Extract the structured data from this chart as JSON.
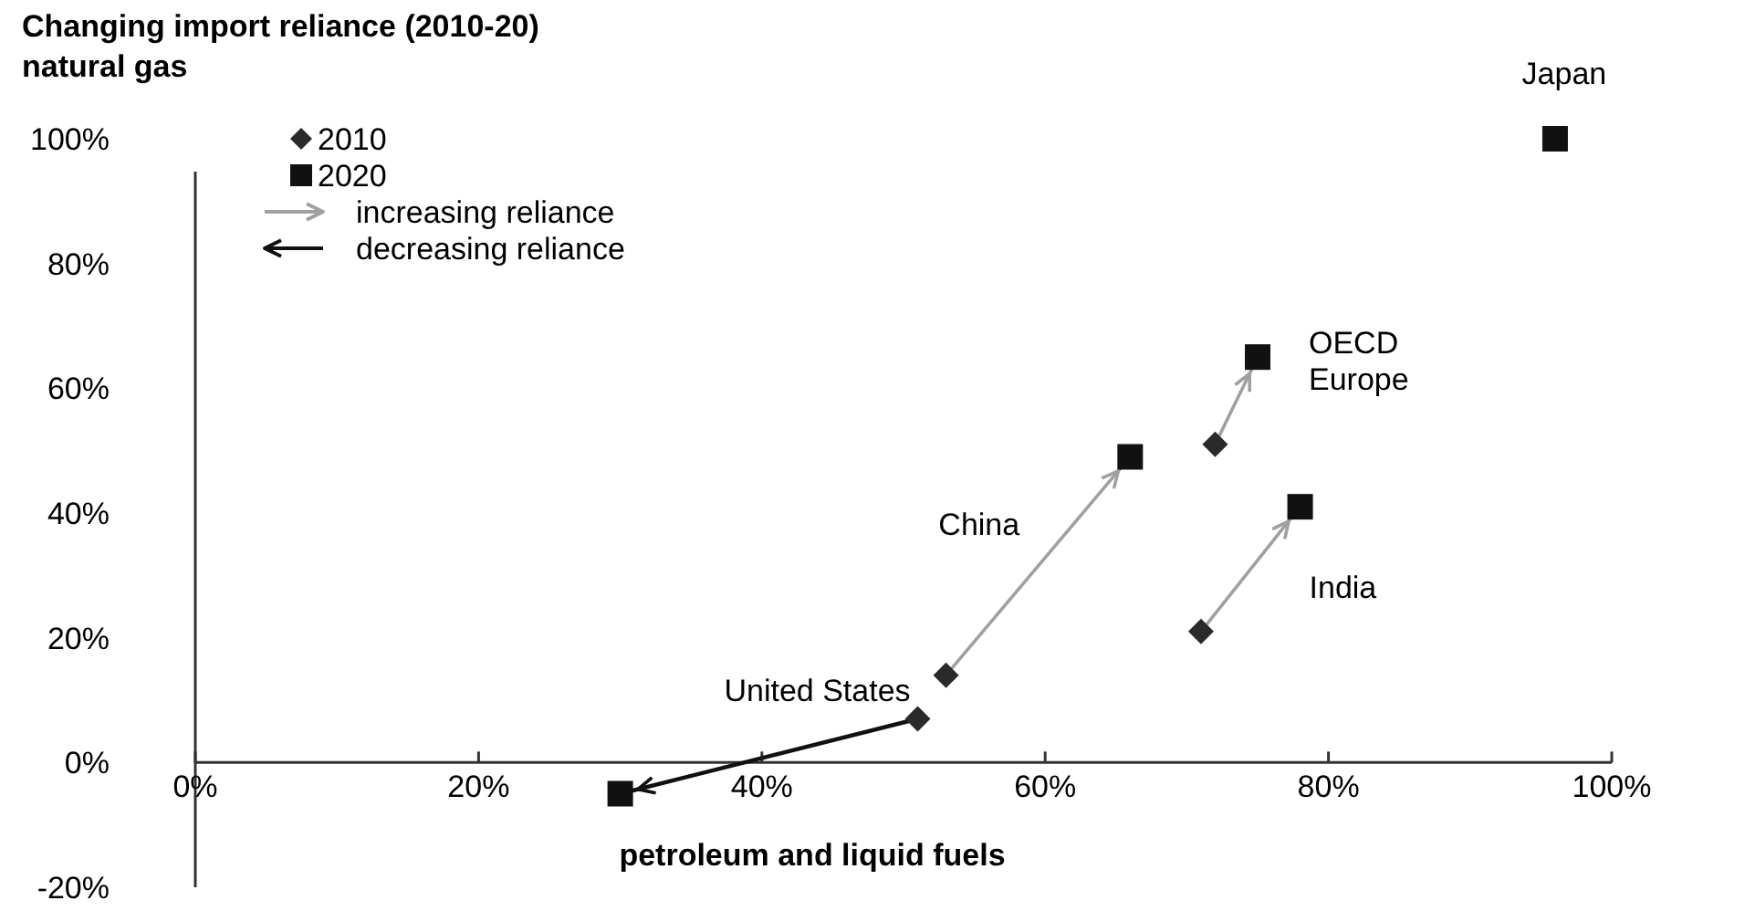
{
  "chart_data": {
    "type": "scatter",
    "title": "Changing import reliance (2010-20)",
    "ylabel": "natural gas",
    "xlabel": "petroleum and liquid fuels",
    "xlim": [
      0,
      100
    ],
    "xticks": [
      {
        "value": 0,
        "label": "0%"
      },
      {
        "value": 20,
        "label": "20%"
      },
      {
        "value": 40,
        "label": "40%"
      },
      {
        "value": 60,
        "label": "60%"
      },
      {
        "value": 80,
        "label": "80%"
      },
      {
        "value": 100,
        "label": "100%"
      }
    ],
    "ylim": [
      -20,
      100
    ],
    "yticks": [
      {
        "value": -20,
        "label": "-20%"
      },
      {
        "value": 0,
        "label": "0%"
      },
      {
        "value": 20,
        "label": "20%"
      },
      {
        "value": 40,
        "label": "40%"
      },
      {
        "value": 60,
        "label": "60%"
      },
      {
        "value": 80,
        "label": "80%"
      },
      {
        "value": 100,
        "label": "100%"
      }
    ],
    "grid": false,
    "legend": "top left",
    "series": [
      {
        "name": "2010",
        "marker": "diamond",
        "color": "#2a2a2a",
        "x": [
          51,
          53,
          72,
          71,
          null
        ],
        "values": [
          7,
          14,
          51,
          21,
          null
        ]
      },
      {
        "name": "2020",
        "marker": "square",
        "color": "#111111",
        "x": [
          30,
          66,
          75,
          78,
          96
        ],
        "values": [
          -5,
          49,
          65,
          41,
          100
        ]
      },
      {
        "name": "increasing reliance",
        "type": "line",
        "marker": "none",
        "color": "#a0a0a0",
        "x": [
          53,
          66,
          null,
          72,
          75,
          null,
          71,
          78
        ],
        "values": [
          14,
          49,
          null,
          51,
          65,
          null,
          21,
          41
        ]
      },
      {
        "name": "decreasing reliance",
        "type": "line",
        "marker": "none",
        "color": "#111111",
        "x": [
          51,
          30
        ],
        "values": [
          7,
          -5
        ]
      }
    ],
    "annotations": [
      {
        "text": "United States",
        "x": 51,
        "y": 7
      },
      {
        "text": "China",
        "x": 60,
        "y": 33
      },
      {
        "text": "OECD Europe",
        "x": 75,
        "y": 65
      },
      {
        "text": "India",
        "x": 78,
        "y": 41
      },
      {
        "text": "Japan",
        "x": 96,
        "y": 100
      }
    ]
  }
}
